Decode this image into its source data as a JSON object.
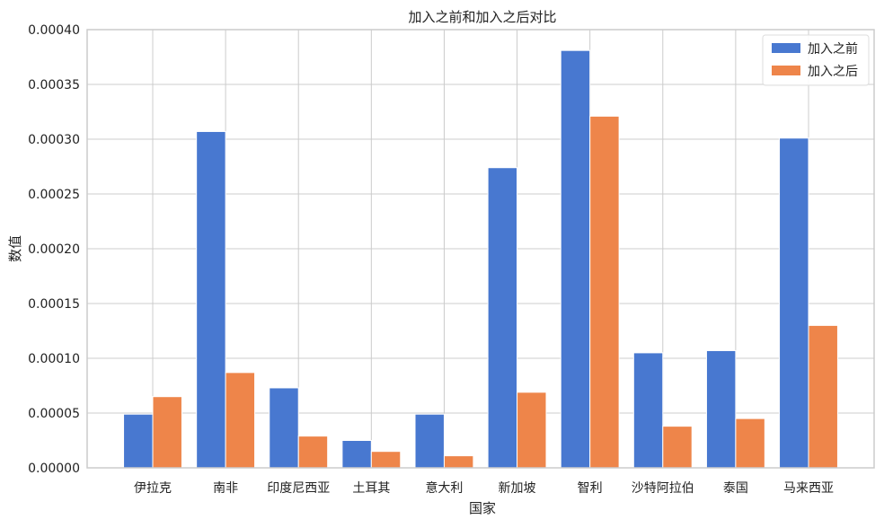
{
  "chart_data": {
    "type": "bar",
    "title": "加入之前和加入之后对比",
    "xlabel": "国家",
    "ylabel": "数值",
    "categories": [
      "伊拉克",
      "南非",
      "印度尼西亚",
      "土耳其",
      "意大利",
      "新加坡",
      "智利",
      "沙特阿拉伯",
      "泰国",
      "马来西亚"
    ],
    "series": [
      {
        "name": "加入之前",
        "color": "#4878d0",
        "values": [
          4.9e-05,
          0.000307,
          7.3e-05,
          2.5e-05,
          4.9e-05,
          0.000274,
          0.000381,
          0.000105,
          0.000107,
          0.000301
        ]
      },
      {
        "name": "加入之后",
        "color": "#ee854a",
        "values": [
          6.5e-05,
          8.7e-05,
          2.9e-05,
          1.5e-05,
          1.1e-05,
          6.9e-05,
          0.000321,
          3.8e-05,
          4.5e-05,
          0.00013
        ]
      }
    ],
    "ylim": [
      0,
      0.0004
    ],
    "yticks": [
      "0.00000",
      "0.00005",
      "0.00010",
      "0.00015",
      "0.00020",
      "0.00025",
      "0.00030",
      "0.00035",
      "0.00040"
    ],
    "grid": true,
    "legend_position": "top-right"
  }
}
